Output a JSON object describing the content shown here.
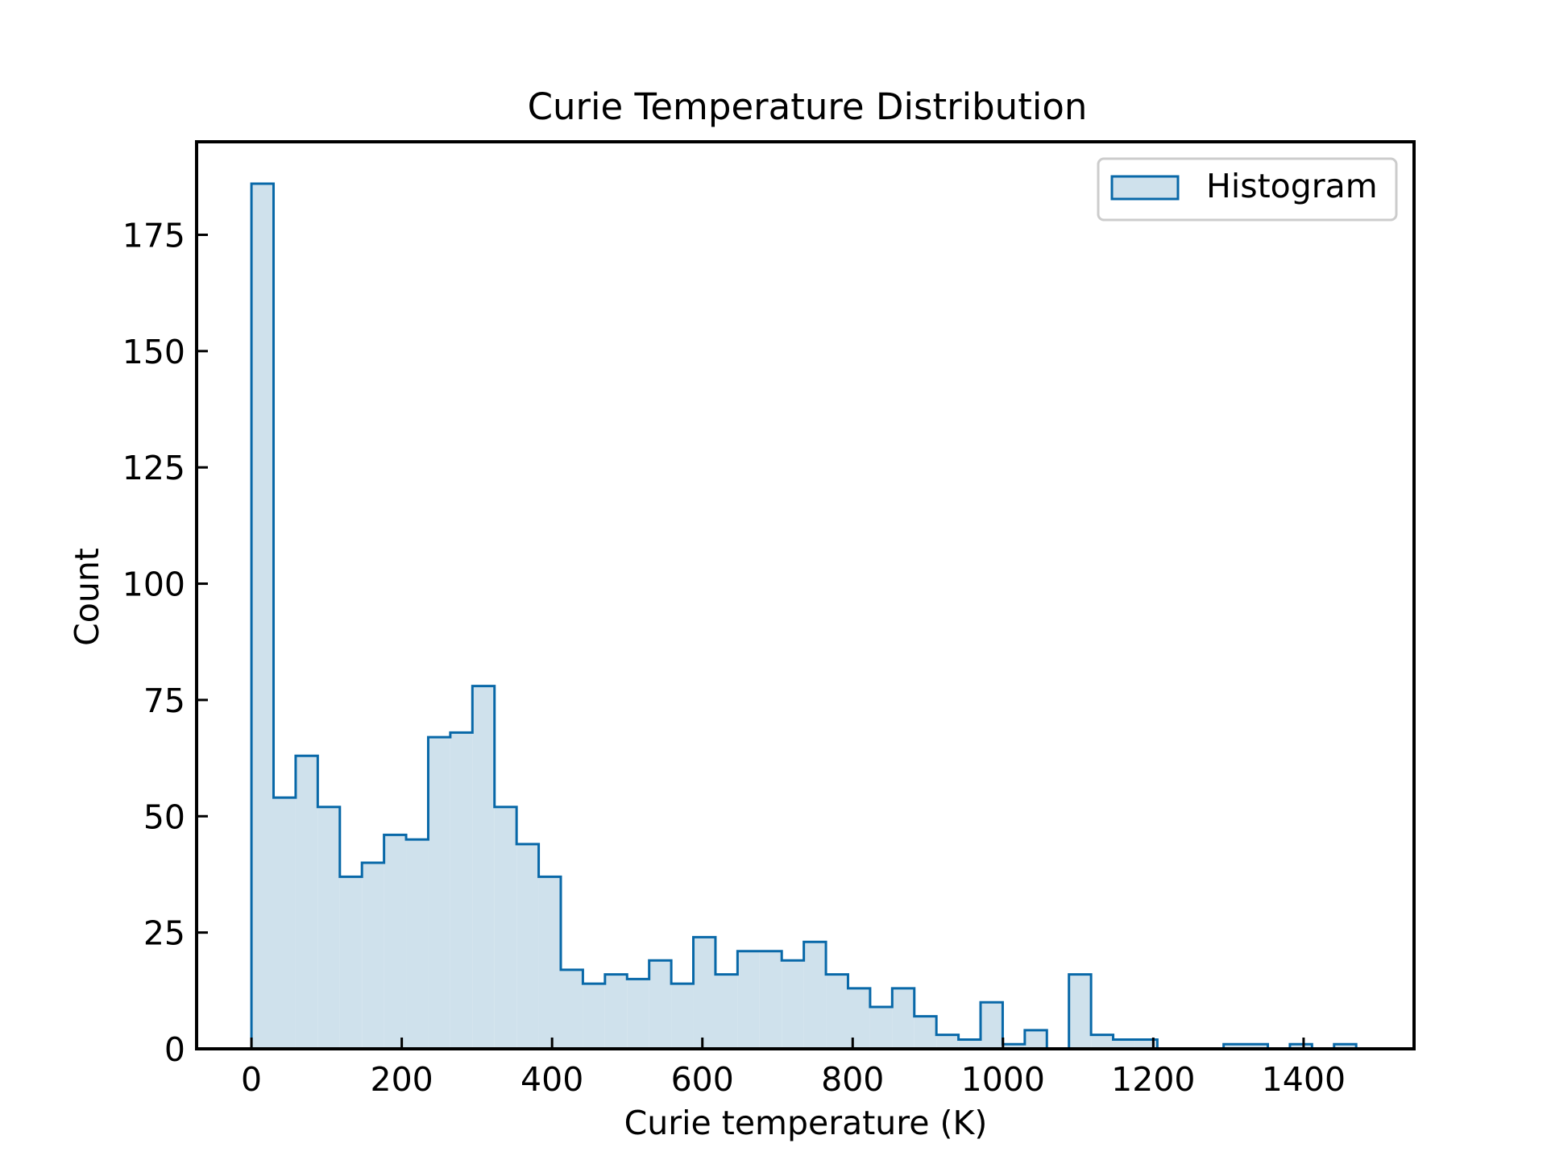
{
  "chart_data": {
    "type": "histogram",
    "title": "Curie Temperature Distribution",
    "xlabel": "Curie temperature (K)",
    "ylabel": "Count",
    "xlim": [
      -73,
      1547
    ],
    "ylim": [
      0,
      195
    ],
    "xticks": [
      0,
      200,
      400,
      600,
      800,
      1000,
      1200,
      1400
    ],
    "yticks": [
      0,
      25,
      50,
      75,
      100,
      125,
      150,
      175
    ],
    "grid": false,
    "legend": {
      "position": "top-right",
      "entries": [
        "Histogram"
      ]
    },
    "colors": {
      "edge": "#0868a8",
      "fill": "#cfe1ec"
    },
    "bin_start": 0,
    "bin_width": 29.4,
    "counts": [
      186,
      54,
      63,
      52,
      37,
      40,
      46,
      45,
      67,
      68,
      78,
      52,
      44,
      37,
      17,
      14,
      16,
      15,
      19,
      14,
      24,
      16,
      21,
      21,
      19,
      23,
      16,
      13,
      9,
      13,
      7,
      3,
      2,
      10,
      1,
      4,
      0,
      16,
      3,
      2,
      2,
      0,
      0,
      0,
      1,
      1,
      0,
      1,
      0,
      1
    ]
  }
}
